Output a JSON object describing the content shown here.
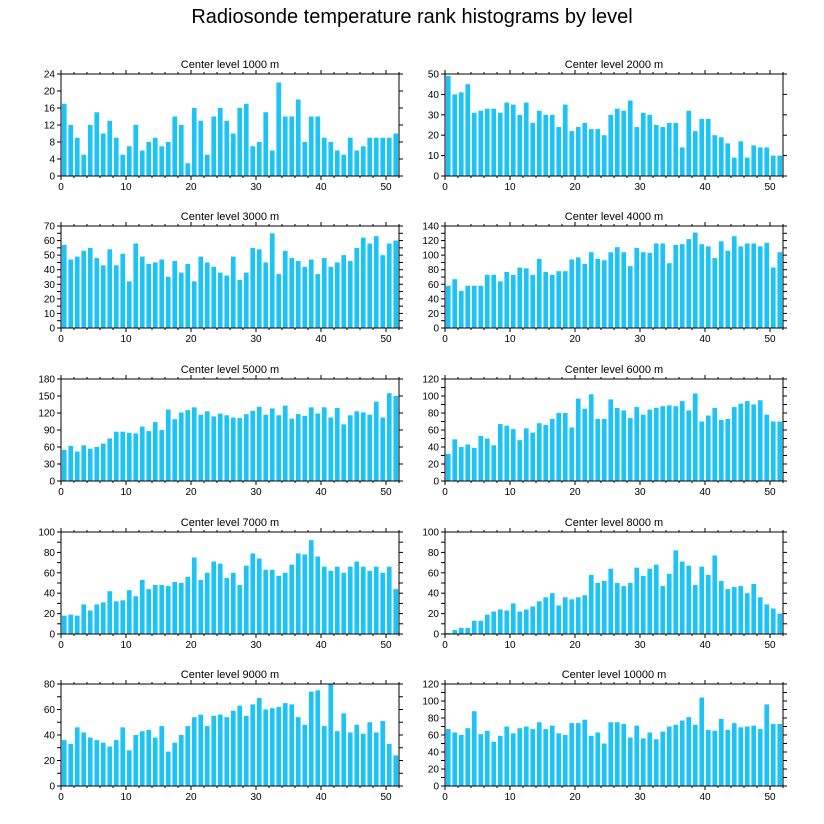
{
  "title": "Radiosonde temperature rank histograms by level",
  "colors": {
    "bar": "#1ec3f5",
    "axis": "#000000",
    "background": "#ffffff"
  },
  "chart_data": [
    {
      "type": "bar",
      "title": "Center level 1000 m",
      "xlim": [
        0,
        52
      ],
      "ylim": [
        0,
        24
      ],
      "yticks": [
        0,
        4,
        8,
        12,
        16,
        20,
        24
      ],
      "xticks": [
        0,
        10,
        20,
        30,
        40,
        50
      ],
      "x": [
        0,
        1,
        2,
        3,
        4,
        5,
        6,
        7,
        8,
        9,
        10,
        11,
        12,
        13,
        14,
        15,
        16,
        17,
        18,
        19,
        20,
        21,
        22,
        23,
        24,
        25,
        26,
        27,
        28,
        29,
        30,
        31,
        32,
        33,
        34,
        35,
        36,
        37,
        38,
        39,
        40,
        41,
        42,
        43,
        44,
        45,
        46,
        47,
        48,
        49,
        50,
        51
      ],
      "values": [
        17,
        12,
        9,
        5,
        12,
        15,
        10,
        13,
        9,
        5,
        7,
        12,
        6,
        8,
        9,
        7,
        8,
        14,
        12,
        3,
        16,
        13,
        5,
        14,
        16,
        13,
        10,
        16,
        17,
        7,
        8,
        15,
        6,
        22,
        14,
        14,
        18,
        8,
        14,
        14,
        9,
        8,
        6,
        5,
        9,
        6,
        7,
        9,
        9,
        9,
        9,
        10
      ]
    },
    {
      "type": "bar",
      "title": "Center level 2000 m",
      "xlim": [
        0,
        52
      ],
      "ylim": [
        0,
        50
      ],
      "yticks": [
        0,
        10,
        20,
        30,
        40,
        50
      ],
      "xticks": [
        0,
        10,
        20,
        30,
        40,
        50
      ],
      "x": [
        0,
        1,
        2,
        3,
        4,
        5,
        6,
        7,
        8,
        9,
        10,
        11,
        12,
        13,
        14,
        15,
        16,
        17,
        18,
        19,
        20,
        21,
        22,
        23,
        24,
        25,
        26,
        27,
        28,
        29,
        30,
        31,
        32,
        33,
        34,
        35,
        36,
        37,
        38,
        39,
        40,
        41,
        42,
        43,
        44,
        45,
        46,
        47,
        48,
        49,
        50,
        51
      ],
      "values": [
        49,
        40,
        41,
        45,
        31,
        32,
        33,
        33,
        31,
        36,
        35,
        30,
        36,
        26,
        32,
        30,
        30,
        24,
        35,
        22,
        24,
        26,
        23,
        23,
        20,
        30,
        33,
        32,
        37,
        24,
        31,
        30,
        25,
        24,
        26,
        26,
        14,
        32,
        22,
        28,
        28,
        20,
        19,
        16,
        9,
        17,
        9,
        15,
        14,
        14,
        10,
        10
      ]
    },
    {
      "type": "bar",
      "title": "Center level 3000 m",
      "xlim": [
        0,
        52
      ],
      "ylim": [
        0,
        70
      ],
      "yticks": [
        0,
        5,
        10,
        15,
        20,
        25,
        30,
        35,
        40,
        45,
        50,
        55,
        60,
        65,
        70
      ],
      "xticks": [
        0,
        10,
        20,
        30,
        40,
        50
      ],
      "x": [
        0,
        1,
        2,
        3,
        4,
        5,
        6,
        7,
        8,
        9,
        10,
        11,
        12,
        13,
        14,
        15,
        16,
        17,
        18,
        19,
        20,
        21,
        22,
        23,
        24,
        25,
        26,
        27,
        28,
        29,
        30,
        31,
        32,
        33,
        34,
        35,
        36,
        37,
        38,
        39,
        40,
        41,
        42,
        43,
        44,
        45,
        46,
        47,
        48,
        49,
        50,
        51
      ],
      "values": [
        57,
        47,
        49,
        53,
        55,
        48,
        43,
        54,
        43,
        51,
        32,
        58,
        49,
        44,
        45,
        47,
        35,
        46,
        38,
        44,
        32,
        49,
        45,
        42,
        38,
        36,
        49,
        33,
        38,
        55,
        54,
        45,
        65,
        37,
        53,
        48,
        46,
        42,
        47,
        37,
        48,
        42,
        45,
        50,
        46,
        55,
        62,
        58,
        63,
        50,
        58,
        60
      ]
    },
    {
      "type": "bar",
      "title": "Center level 4000 m",
      "xlim": [
        0,
        52
      ],
      "ylim": [
        0,
        140
      ],
      "yticks": [
        0,
        10,
        20,
        30,
        40,
        50,
        60,
        70,
        80,
        90,
        100,
        110,
        120,
        130,
        140
      ],
      "xticks": [
        0,
        10,
        20,
        30,
        40,
        50
      ],
      "x": [
        0,
        1,
        2,
        3,
        4,
        5,
        6,
        7,
        8,
        9,
        10,
        11,
        12,
        13,
        14,
        15,
        16,
        17,
        18,
        19,
        20,
        21,
        22,
        23,
        24,
        25,
        26,
        27,
        28,
        29,
        30,
        31,
        32,
        33,
        34,
        35,
        36,
        37,
        38,
        39,
        40,
        41,
        42,
        43,
        44,
        45,
        46,
        47,
        48,
        49,
        50,
        51
      ],
      "values": [
        58,
        67,
        51,
        58,
        58,
        58,
        73,
        73,
        64,
        77,
        73,
        83,
        82,
        73,
        95,
        77,
        73,
        78,
        78,
        94,
        97,
        88,
        104,
        95,
        93,
        104,
        111,
        104,
        85,
        110,
        104,
        103,
        116,
        116,
        89,
        114,
        115,
        122,
        131,
        115,
        112,
        96,
        119,
        106,
        126,
        112,
        116,
        116,
        112,
        117,
        83,
        104
      ]
    },
    {
      "type": "bar",
      "title": "Center level 5000 m",
      "xlim": [
        0,
        52
      ],
      "ylim": [
        0,
        180
      ],
      "yticks": [
        0,
        30,
        60,
        90,
        120,
        150,
        180
      ],
      "xticks": [
        0,
        10,
        20,
        30,
        40,
        50
      ],
      "x": [
        0,
        1,
        2,
        3,
        4,
        5,
        6,
        7,
        8,
        9,
        10,
        11,
        12,
        13,
        14,
        15,
        16,
        17,
        18,
        19,
        20,
        21,
        22,
        23,
        24,
        25,
        26,
        27,
        28,
        29,
        30,
        31,
        32,
        33,
        34,
        35,
        36,
        37,
        38,
        39,
        40,
        41,
        42,
        43,
        44,
        45,
        46,
        47,
        48,
        49,
        50,
        51
      ],
      "values": [
        55,
        62,
        52,
        63,
        57,
        60,
        66,
        75,
        87,
        87,
        85,
        84,
        96,
        88,
        104,
        90,
        126,
        109,
        121,
        125,
        130,
        117,
        123,
        114,
        119,
        116,
        112,
        111,
        118,
        124,
        131,
        117,
        128,
        116,
        133,
        110,
        118,
        115,
        130,
        119,
        130,
        112,
        129,
        100,
        116,
        123,
        121,
        117,
        140,
        112,
        155,
        150
      ]
    },
    {
      "type": "bar",
      "title": "Center level 6000 m",
      "xlim": [
        0,
        52
      ],
      "ylim": [
        0,
        120
      ],
      "yticks": [
        0,
        10,
        20,
        30,
        40,
        50,
        60,
        70,
        80,
        90,
        100,
        110,
        120
      ],
      "xticks": [
        0,
        10,
        20,
        30,
        40,
        50
      ],
      "x": [
        0,
        1,
        2,
        3,
        4,
        5,
        6,
        7,
        8,
        9,
        10,
        11,
        12,
        13,
        14,
        15,
        16,
        17,
        18,
        19,
        20,
        21,
        22,
        23,
        24,
        25,
        26,
        27,
        28,
        29,
        30,
        31,
        32,
        33,
        34,
        35,
        36,
        37,
        38,
        39,
        40,
        41,
        42,
        43,
        44,
        45,
        46,
        47,
        48,
        49,
        50,
        51
      ],
      "values": [
        32,
        49,
        40,
        43,
        39,
        53,
        50,
        42,
        67,
        65,
        61,
        48,
        62,
        57,
        68,
        66,
        73,
        80,
        80,
        63,
        97,
        85,
        102,
        73,
        73,
        96,
        86,
        83,
        74,
        87,
        78,
        84,
        86,
        88,
        89,
        88,
        94,
        83,
        103,
        70,
        77,
        86,
        72,
        73,
        87,
        91,
        94,
        90,
        95,
        78,
        70,
        70
      ]
    },
    {
      "type": "bar",
      "title": "Center level 7000 m",
      "xlim": [
        0,
        52
      ],
      "ylim": [
        0,
        100
      ],
      "yticks": [
        0,
        10,
        20,
        30,
        40,
        50,
        60,
        70,
        80,
        90,
        100
      ],
      "xticks": [
        0,
        10,
        20,
        30,
        40,
        50
      ],
      "x": [
        0,
        1,
        2,
        3,
        4,
        5,
        6,
        7,
        8,
        9,
        10,
        11,
        12,
        13,
        14,
        15,
        16,
        17,
        18,
        19,
        20,
        21,
        22,
        23,
        24,
        25,
        26,
        27,
        28,
        29,
        30,
        31,
        32,
        33,
        34,
        35,
        36,
        37,
        38,
        39,
        40,
        41,
        42,
        43,
        44,
        45,
        46,
        47,
        48,
        49,
        50,
        51
      ],
      "values": [
        18,
        19,
        18,
        29,
        23,
        29,
        31,
        42,
        32,
        33,
        43,
        37,
        53,
        44,
        48,
        48,
        47,
        51,
        50,
        56,
        75,
        53,
        60,
        71,
        69,
        55,
        60,
        48,
        67,
        79,
        74,
        63,
        63,
        57,
        60,
        68,
        79,
        78,
        92,
        76,
        66,
        62,
        66,
        60,
        66,
        71,
        66,
        62,
        66,
        60,
        66,
        44
      ]
    },
    {
      "type": "bar",
      "title": "Center level 8000 m",
      "xlim": [
        0,
        52
      ],
      "ylim": [
        0,
        100
      ],
      "yticks": [
        0,
        10,
        20,
        30,
        40,
        50,
        60,
        70,
        80,
        90,
        100
      ],
      "xticks": [
        0,
        10,
        20,
        30,
        40,
        50
      ],
      "x": [
        0,
        1,
        2,
        3,
        4,
        5,
        6,
        7,
        8,
        9,
        10,
        11,
        12,
        13,
        14,
        15,
        16,
        17,
        18,
        19,
        20,
        21,
        22,
        23,
        24,
        25,
        26,
        27,
        28,
        29,
        30,
        31,
        32,
        33,
        34,
        35,
        36,
        37,
        38,
        39,
        40,
        41,
        42,
        43,
        44,
        45,
        46,
        47,
        48,
        49,
        50,
        51
      ],
      "values": [
        1,
        4,
        6,
        6,
        13,
        13,
        19,
        22,
        24,
        23,
        30,
        22,
        24,
        27,
        32,
        36,
        40,
        28,
        36,
        34,
        36,
        38,
        58,
        50,
        52,
        64,
        50,
        47,
        50,
        65,
        57,
        64,
        68,
        47,
        59,
        82,
        71,
        67,
        48,
        66,
        58,
        77,
        52,
        44,
        46,
        47,
        40,
        49,
        36,
        29,
        25,
        20
      ]
    },
    {
      "type": "bar",
      "title": "Center level 9000 m",
      "xlim": [
        0,
        52
      ],
      "ylim": [
        0,
        80
      ],
      "yticks": [
        0,
        10,
        20,
        30,
        40,
        50,
        60,
        70,
        80
      ],
      "xticks": [
        0,
        10,
        20,
        30,
        40,
        50
      ],
      "x": [
        0,
        1,
        2,
        3,
        4,
        5,
        6,
        7,
        8,
        9,
        10,
        11,
        12,
        13,
        14,
        15,
        16,
        17,
        18,
        19,
        20,
        21,
        22,
        23,
        24,
        25,
        26,
        27,
        28,
        29,
        30,
        31,
        32,
        33,
        34,
        35,
        36,
        37,
        38,
        39,
        40,
        41,
        42,
        43,
        44,
        45,
        46,
        47,
        48,
        49,
        50,
        51
      ],
      "values": [
        36,
        33,
        46,
        42,
        38,
        36,
        34,
        31,
        36,
        46,
        28,
        40,
        43,
        44,
        38,
        47,
        27,
        34,
        40,
        47,
        54,
        56,
        47,
        55,
        56,
        54,
        59,
        63,
        55,
        64,
        69,
        60,
        61,
        62,
        65,
        64,
        54,
        48,
        74,
        75,
        47,
        80,
        43,
        57,
        42,
        48,
        41,
        50,
        42,
        51,
        33,
        24
      ]
    },
    {
      "type": "bar",
      "title": "Center level 10000 m",
      "xlim": [
        0,
        52
      ],
      "ylim": [
        0,
        120
      ],
      "yticks": [
        0,
        10,
        20,
        30,
        40,
        50,
        60,
        70,
        80,
        90,
        100,
        110,
        120
      ],
      "xticks": [
        0,
        10,
        20,
        30,
        40,
        50
      ],
      "x": [
        0,
        1,
        2,
        3,
        4,
        5,
        6,
        7,
        8,
        9,
        10,
        11,
        12,
        13,
        14,
        15,
        16,
        17,
        18,
        19,
        20,
        21,
        22,
        23,
        24,
        25,
        26,
        27,
        28,
        29,
        30,
        31,
        32,
        33,
        34,
        35,
        36,
        37,
        38,
        39,
        40,
        41,
        42,
        43,
        44,
        45,
        46,
        47,
        48,
        49,
        50,
        51
      ],
      "values": [
        67,
        63,
        60,
        68,
        88,
        61,
        65,
        52,
        59,
        70,
        62,
        68,
        70,
        67,
        75,
        67,
        71,
        62,
        60,
        74,
        74,
        78,
        59,
        63,
        50,
        75,
        75,
        73,
        57,
        71,
        56,
        63,
        55,
        64,
        70,
        72,
        77,
        81,
        72,
        104,
        66,
        65,
        79,
        66,
        74,
        69,
        70,
        71,
        67,
        96,
        73,
        73
      ]
    }
  ]
}
